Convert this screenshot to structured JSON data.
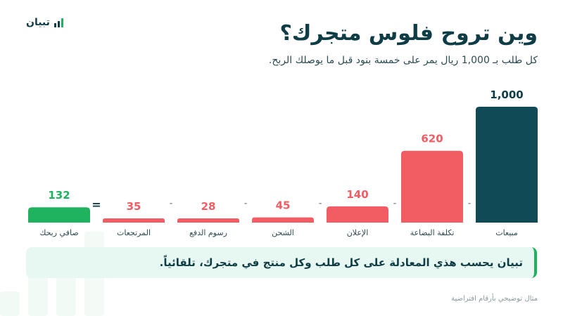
{
  "logo": {
    "name": "تبيان",
    "icon": "bar-chart-icon"
  },
  "title": "وين تروح فلوس متجرك؟",
  "subtitle": "كل طلب بـ 1,000 ريال يمر على خمسة بنود قبل ما يوصلك الربح.",
  "callout": "تبيان يحسب هذي المعادلة على كل طلب وكل منتج في متجرك، تلقائياً.",
  "footnote": "مثال توضيحي بأرقام افتراضية",
  "colors": {
    "sales": "#0f4a56",
    "cost": "#f25c63",
    "profit": "#1fb35f",
    "text": "#0f3d46"
  },
  "chart_data": {
    "type": "bar",
    "title": "وين تروح فلوس متجرك؟",
    "unit": "ريال",
    "categories": [
      "مبيعات",
      "تكلفة البضاعة",
      "الإعلان",
      "الشحن",
      "رسوم الدفع",
      "المرتجعات",
      "صافي ربحك"
    ],
    "values": [
      1000,
      620,
      140,
      45,
      28,
      35,
      132
    ],
    "value_labels": [
      "1,000",
      "620",
      "140",
      "45",
      "28",
      "35",
      "132"
    ],
    "kinds": [
      "sales",
      "cost",
      "cost",
      "cost",
      "cost",
      "cost",
      "profit"
    ],
    "operators": [
      "-",
      "-",
      "-",
      "-",
      "-",
      "="
    ],
    "ylim": [
      0,
      1000
    ],
    "grid": false,
    "legend": "none"
  }
}
